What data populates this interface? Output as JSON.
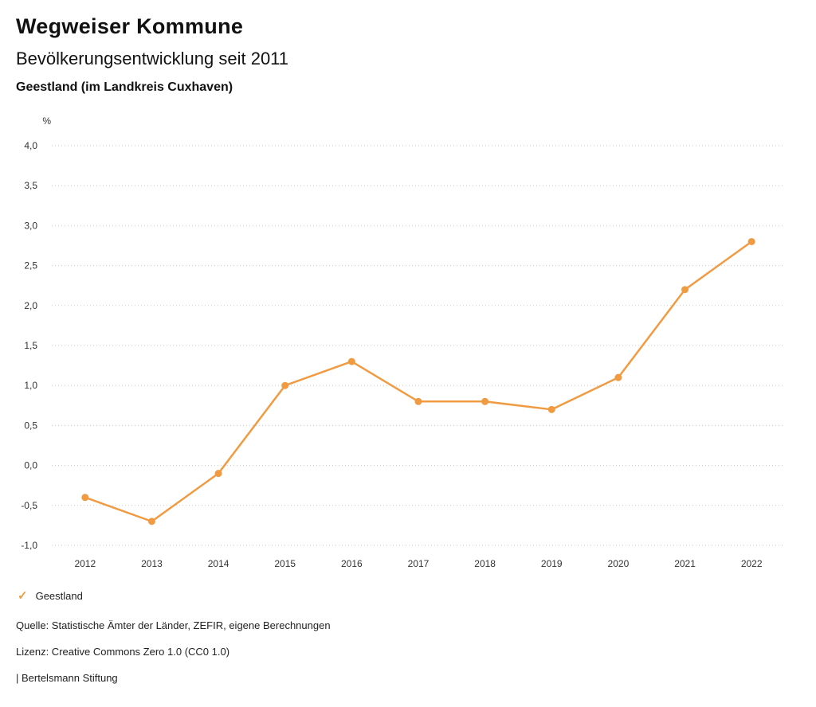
{
  "header": {
    "title": "Wegweiser Kommune",
    "subtitle": "Bevölkerungsentwicklung seit 2011",
    "region": "Geestland (im Landkreis Cuxhaven)"
  },
  "chart_data": {
    "type": "line",
    "title": "Bevölkerungsentwicklung seit 2011",
    "subtitle": "Geestland (im Landkreis Cuxhaven)",
    "unit_label": "%",
    "categories": [
      "2012",
      "2013",
      "2014",
      "2015",
      "2016",
      "2017",
      "2018",
      "2019",
      "2020",
      "2021",
      "2022"
    ],
    "series": [
      {
        "name": "Geestland",
        "color": "#f09b42",
        "values": [
          -0.4,
          -0.7,
          -0.1,
          1.0,
          1.3,
          0.8,
          0.8,
          0.7,
          1.1,
          2.2,
          2.8
        ]
      }
    ],
    "ylim": [
      -1.0,
      4.0
    ],
    "yticks": [
      {
        "value": 4.0,
        "label": "4,0"
      },
      {
        "value": 3.5,
        "label": "3,5"
      },
      {
        "value": 3.0,
        "label": "3,0"
      },
      {
        "value": 2.5,
        "label": "2,5"
      },
      {
        "value": 2.0,
        "label": "2,0"
      },
      {
        "value": 1.5,
        "label": "1,5"
      },
      {
        "value": 1.0,
        "label": "1,0"
      },
      {
        "value": 0.5,
        "label": "0,5"
      },
      {
        "value": 0.0,
        "label": "0,0"
      },
      {
        "value": -0.5,
        "label": "-0,5"
      },
      {
        "value": -1.0,
        "label": "-1,0"
      }
    ],
    "grid": "dotted-horizontal",
    "legend_position": "bottom-left"
  },
  "legend": {
    "items": [
      {
        "label": "Geestland",
        "color": "#f09b42",
        "marker_glyph": "✓"
      }
    ]
  },
  "footer": {
    "source": "Quelle: Statistische Ämter der Länder, ZEFIR, eigene Berechnungen",
    "license": "Lizenz: Creative Commons Zero 1.0 (CC0 1.0)",
    "attribution": "| Bertelsmann Stiftung"
  }
}
